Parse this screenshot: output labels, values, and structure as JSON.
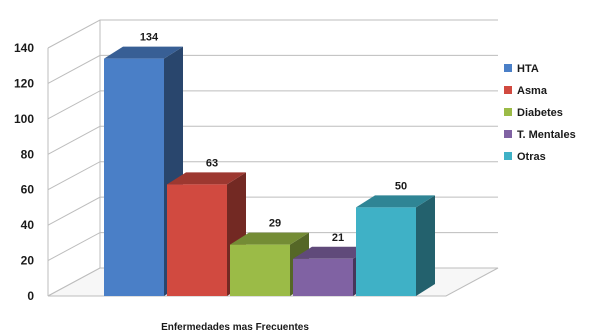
{
  "chart_data": {
    "type": "bar",
    "title": "",
    "xlabel": "Enfermedades mas Frecuentes",
    "ylabel": "",
    "ylim": [
      0,
      140
    ],
    "ytick_step": 20,
    "grid": true,
    "legend_position": "right",
    "three_d": true,
    "series": [
      {
        "name": "HTA",
        "value": 134,
        "label": "134",
        "color": "#4a7fc7"
      },
      {
        "name": "Asma",
        "value": 63,
        "label": "63",
        "color": "#d14a40"
      },
      {
        "name": "Diabetes",
        "value": 29,
        "label": "29",
        "color": "#9bbb47"
      },
      {
        "name": "T. Mentales",
        "value": 21,
        "label": "21",
        "color": "#8062a3"
      },
      {
        "name": "Otras",
        "value": 50,
        "label": "50",
        "color": "#3fb1c6"
      }
    ]
  }
}
